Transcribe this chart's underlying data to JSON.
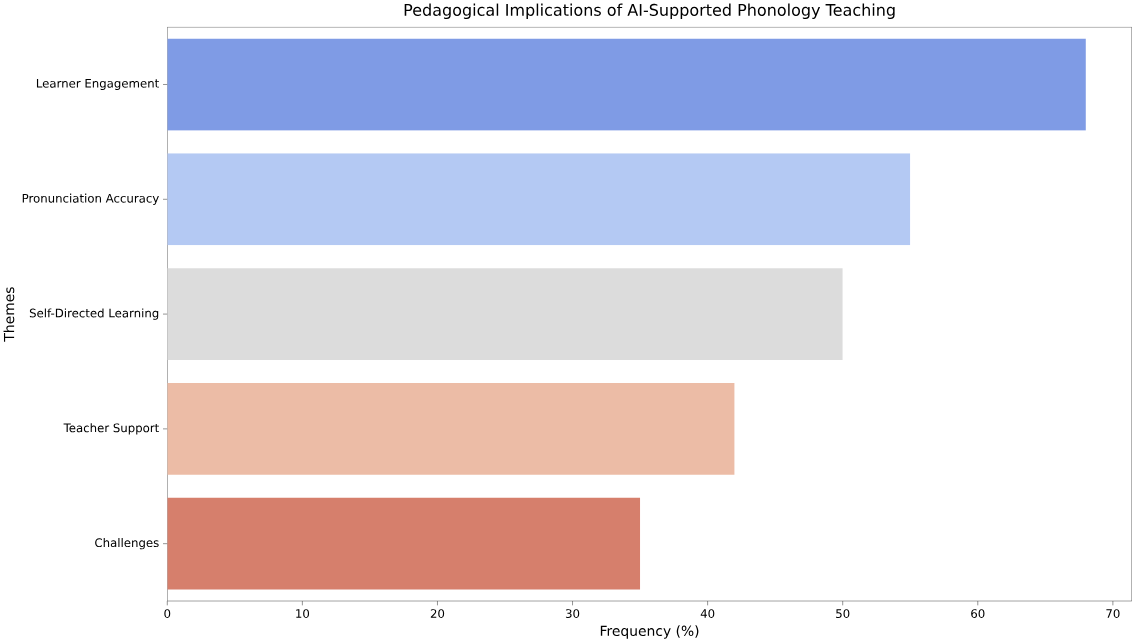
{
  "chart_data": {
    "type": "bar",
    "orientation": "horizontal",
    "title": "Pedagogical Implications of AI-Supported Phonology Teaching",
    "xlabel": "Frequency (%)",
    "ylabel": "Themes",
    "categories": [
      "Learner Engagement",
      "Pronunciation Accuracy",
      "Self-Directed Learning",
      "Teacher Support",
      "Challenges"
    ],
    "values": [
      68,
      55,
      50,
      42,
      35
    ],
    "colors": [
      "#7f9be5",
      "#b4c9f3",
      "#dcdcdc",
      "#ecbca6",
      "#d67f6c"
    ],
    "xlim": [
      0,
      71.4
    ],
    "xticks": [
      0,
      10,
      20,
      30,
      40,
      50,
      60,
      70
    ],
    "grid": false
  }
}
